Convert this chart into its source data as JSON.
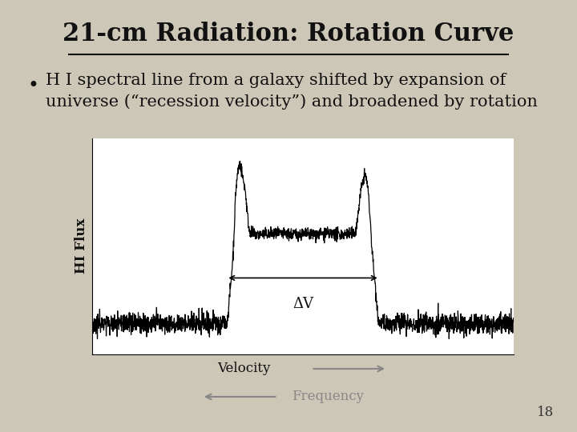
{
  "title": "21-cm Radiation: Rotation Curve",
  "bullet_text": "H I spectral line from a galaxy shifted by expansion of\nuniverse (“recession velocity”) and broadened by rotation",
  "bg_color": "#cdc7b8",
  "plot_bg": "#ffffff",
  "title_fontsize": 22,
  "bullet_fontsize": 15,
  "ylabel": "HI Flux",
  "xlabel_velocity": "Velocity",
  "xlabel_frequency": "Frequency",
  "page_number": "18",
  "arrow_color": "#888888",
  "dv_label": "ΔV"
}
